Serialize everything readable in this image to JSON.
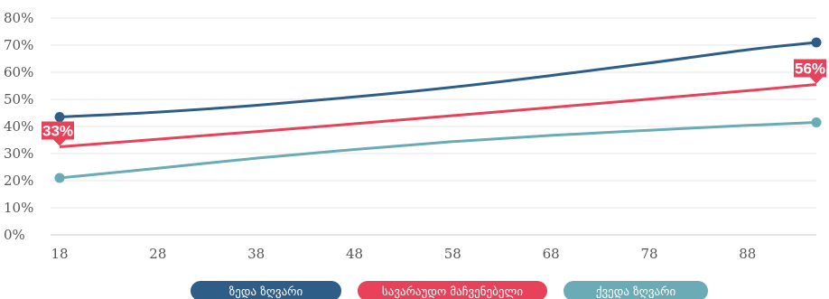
{
  "chart_data": {
    "type": "line",
    "x": [
      18,
      95
    ],
    "xticks": [
      18,
      28,
      38,
      48,
      58,
      68,
      78,
      88
    ],
    "xlim": [
      18,
      95
    ],
    "ylim": [
      0,
      80
    ],
    "yticks": [
      0,
      10,
      20,
      30,
      40,
      50,
      60,
      70,
      80
    ],
    "ytick_labels": [
      "0%",
      "10%",
      "20%",
      "30%",
      "40%",
      "50%",
      "60%",
      "70%",
      "80%"
    ],
    "grid": "horizontal",
    "legend_position": "bottom",
    "series": [
      {
        "name": "ზედა ზღვარი",
        "color": "#2e5d87",
        "values": [
          43.5,
          71
        ],
        "curve": [
          [
            18,
            43.5
          ],
          [
            28,
            45.3
          ],
          [
            38,
            47.8
          ],
          [
            48,
            50.9
          ],
          [
            58,
            54.5
          ],
          [
            68,
            58.8
          ],
          [
            78,
            63.4
          ],
          [
            88,
            68.3
          ],
          [
            95,
            71
          ]
        ]
      },
      {
        "name": "სავარაუდო მაჩვენებელი",
        "color": "#e8415a",
        "values": [
          33,
          56
        ],
        "curve": [
          [
            18,
            32.5
          ],
          [
            28,
            35.3
          ],
          [
            38,
            38.1
          ],
          [
            48,
            41.0
          ],
          [
            58,
            44.0
          ],
          [
            68,
            47.0
          ],
          [
            78,
            50.1
          ],
          [
            88,
            53.2
          ],
          [
            95,
            55.5
          ]
        ],
        "callouts": [
          {
            "x": 18,
            "y": 32.5,
            "label": "33%",
            "side": "right"
          },
          {
            "x": 95,
            "y": 55.5,
            "label": "56%",
            "side": "left"
          }
        ]
      },
      {
        "name": "ქვედა ზღვარი",
        "color": "#6aabb5",
        "values": [
          21,
          41.5
        ],
        "curve": [
          [
            18,
            21
          ],
          [
            28,
            24.6
          ],
          [
            38,
            28.3
          ],
          [
            48,
            31.5
          ],
          [
            58,
            34.4
          ],
          [
            68,
            36.7
          ],
          [
            78,
            38.6
          ],
          [
            88,
            40.4
          ],
          [
            95,
            41.5
          ]
        ]
      }
    ]
  }
}
